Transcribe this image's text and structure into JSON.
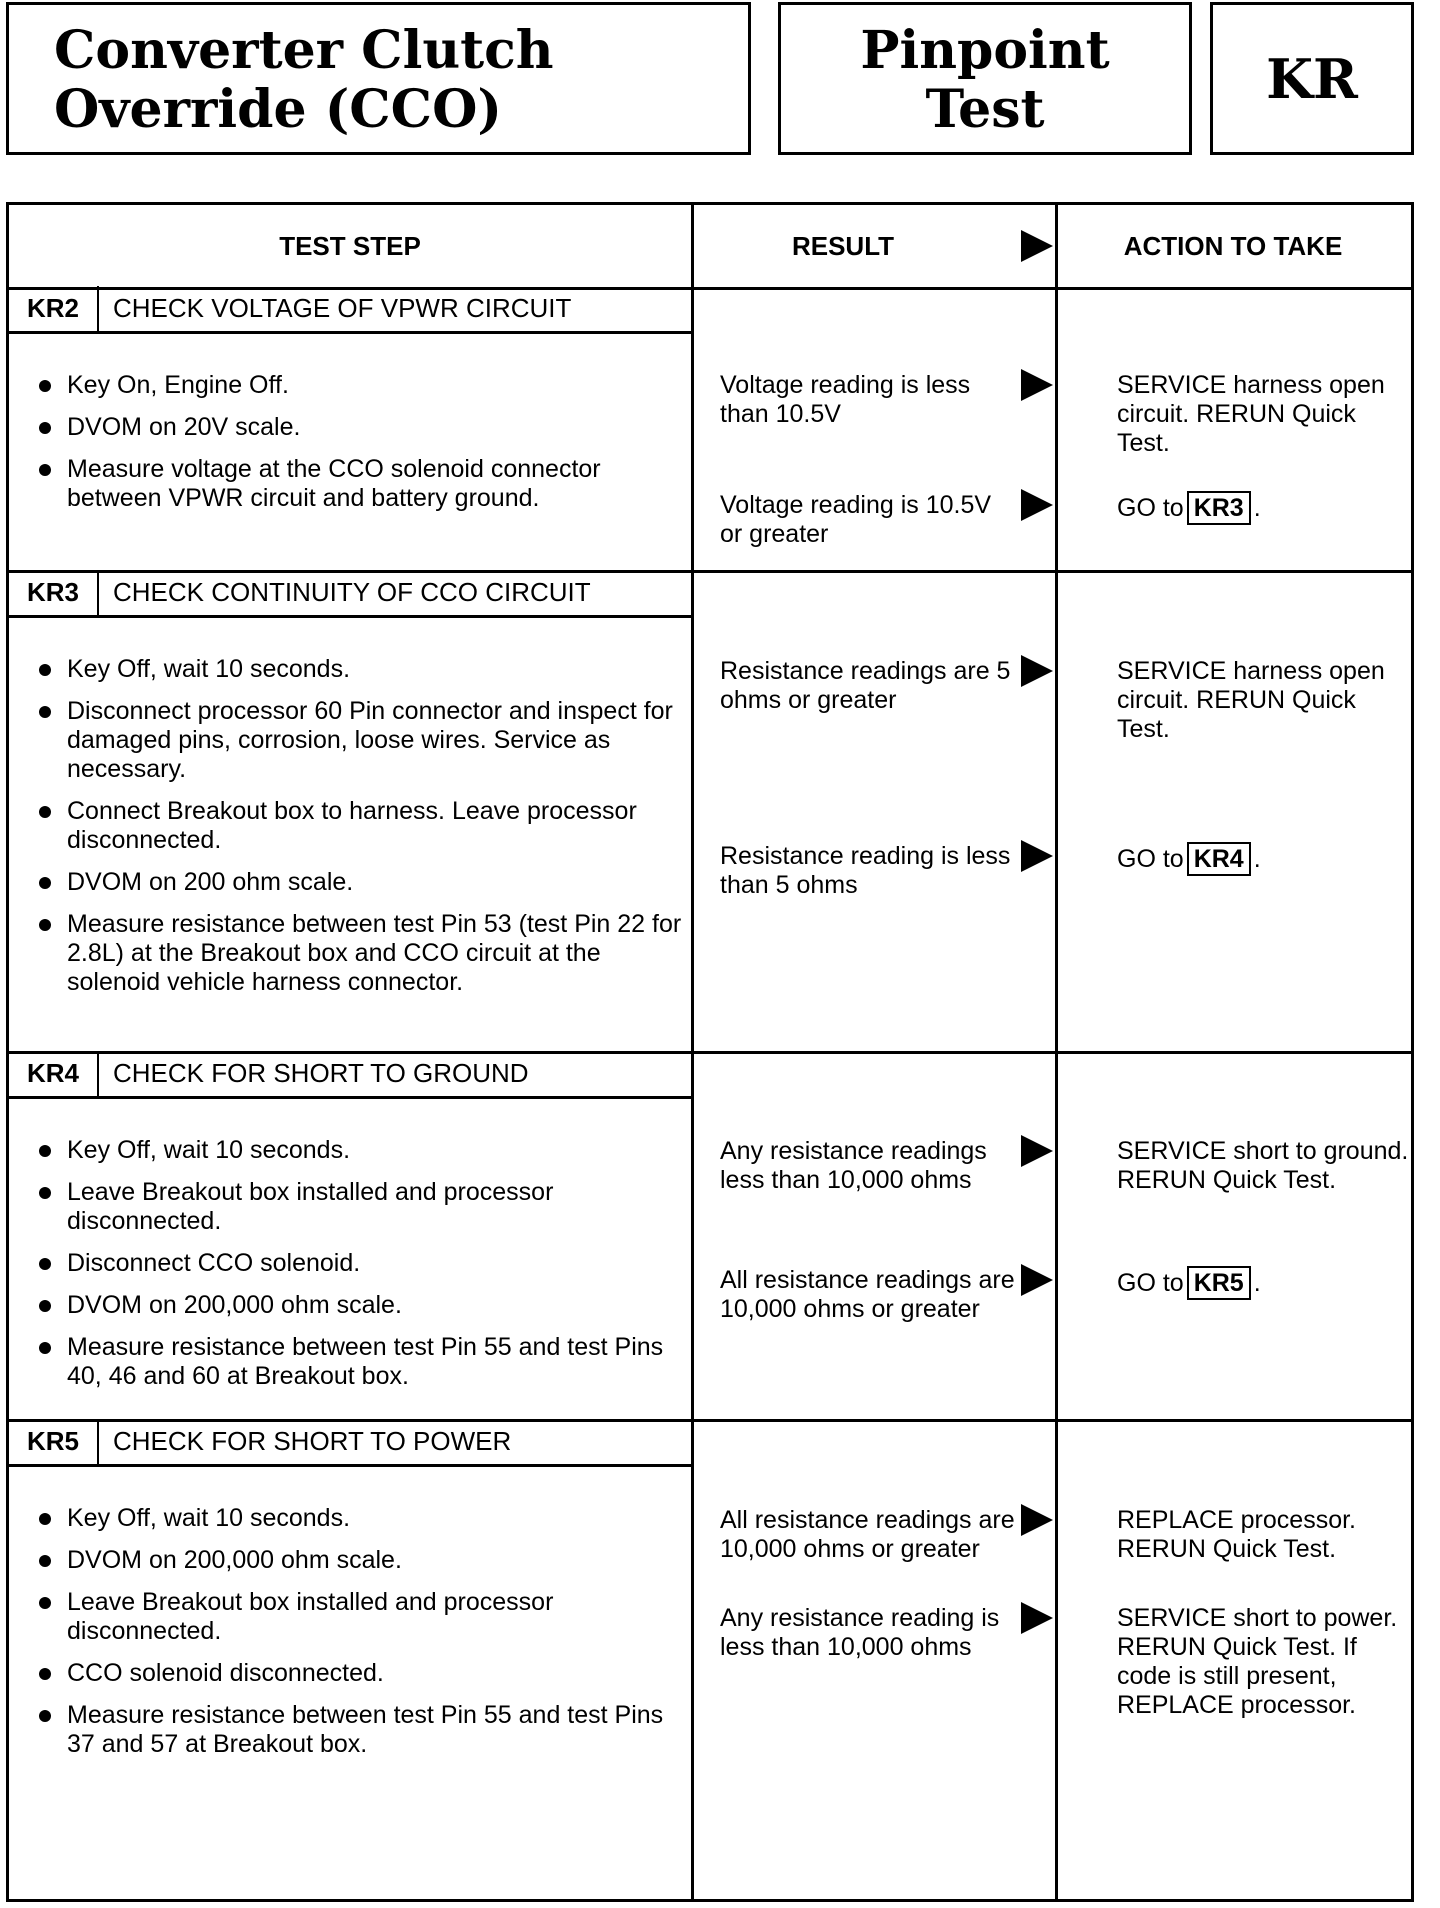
{
  "header": {
    "title_line1": "Converter Clutch",
    "title_line2": "Override (CCO)",
    "test_line1": "Pinpoint",
    "test_line2": "Test",
    "code": "KR"
  },
  "table": {
    "col_test_step": "TEST STEP",
    "col_result": "RESULT",
    "col_action": "ACTION TO TAKE"
  },
  "sections": [
    {
      "code": "KR2",
      "title": "CHECK VOLTAGE OF VPWR CIRCUIT",
      "steps": [
        "Key On, Engine Off.",
        "DVOM on 20V scale.",
        "Measure voltage at the CCO solenoid connector between VPWR circuit and battery ground."
      ],
      "results": [
        {
          "result": "Voltage reading is less than 10.5V",
          "action": "SERVICE harness open circuit. RERUN Quick Test."
        },
        {
          "result": "Voltage reading is 10.5V or greater",
          "action_prefix": "GO to",
          "action_ref": "KR3",
          "action_suffix": "."
        }
      ]
    },
    {
      "code": "KR3",
      "title": "CHECK CONTINUITY OF CCO CIRCUIT",
      "steps": [
        "Key Off, wait 10 seconds.",
        "Disconnect processor 60 Pin connector and inspect for damaged pins, corrosion, loose wires. Service as necessary.",
        "Connect Breakout box to harness. Leave processor disconnected.",
        "DVOM on 200 ohm scale.",
        "Measure resistance between test Pin 53 (test Pin 22 for 2.8L) at the Breakout box and CCO circuit at the solenoid vehicle harness connector."
      ],
      "results": [
        {
          "result": "Resistance readings are 5 ohms or greater",
          "action": "SERVICE harness open circuit. RERUN Quick Test."
        },
        {
          "result": "Resistance reading is less than 5 ohms",
          "action_prefix": "GO to",
          "action_ref": "KR4",
          "action_suffix": "."
        }
      ]
    },
    {
      "code": "KR4",
      "title": "CHECK FOR SHORT TO GROUND",
      "steps": [
        "Key Off, wait 10 seconds.",
        "Leave Breakout box installed and processor disconnected.",
        "Disconnect CCO solenoid.",
        "DVOM on 200,000 ohm scale.",
        "Measure resistance between test Pin 55 and test Pins 40, 46 and 60 at Breakout box."
      ],
      "results": [
        {
          "result": "Any resistance readings less than 10,000 ohms",
          "action": "SERVICE short to ground. RERUN Quick Test."
        },
        {
          "result": "All resistance readings are 10,000 ohms or greater",
          "action_prefix": "GO to",
          "action_ref": "KR5",
          "action_suffix": "."
        }
      ]
    },
    {
      "code": "KR5",
      "title": "CHECK FOR SHORT TO POWER",
      "steps": [
        "Key Off, wait 10 seconds.",
        "DVOM on 200,000 ohm scale.",
        "Leave Breakout box installed and processor disconnected.",
        "CCO solenoid disconnected.",
        "Measure resistance between test Pin 55 and test Pins 37 and 57 at Breakout box."
      ],
      "results": [
        {
          "result": "All resistance readings are 10,000 ohms or greater",
          "action": "REPLACE processor. RERUN Quick Test."
        },
        {
          "result": "Any resistance reading is less than 10,000 ohms",
          "action": "SERVICE short to power. RERUN Quick Test. If code is still present, REPLACE processor."
        }
      ]
    }
  ]
}
